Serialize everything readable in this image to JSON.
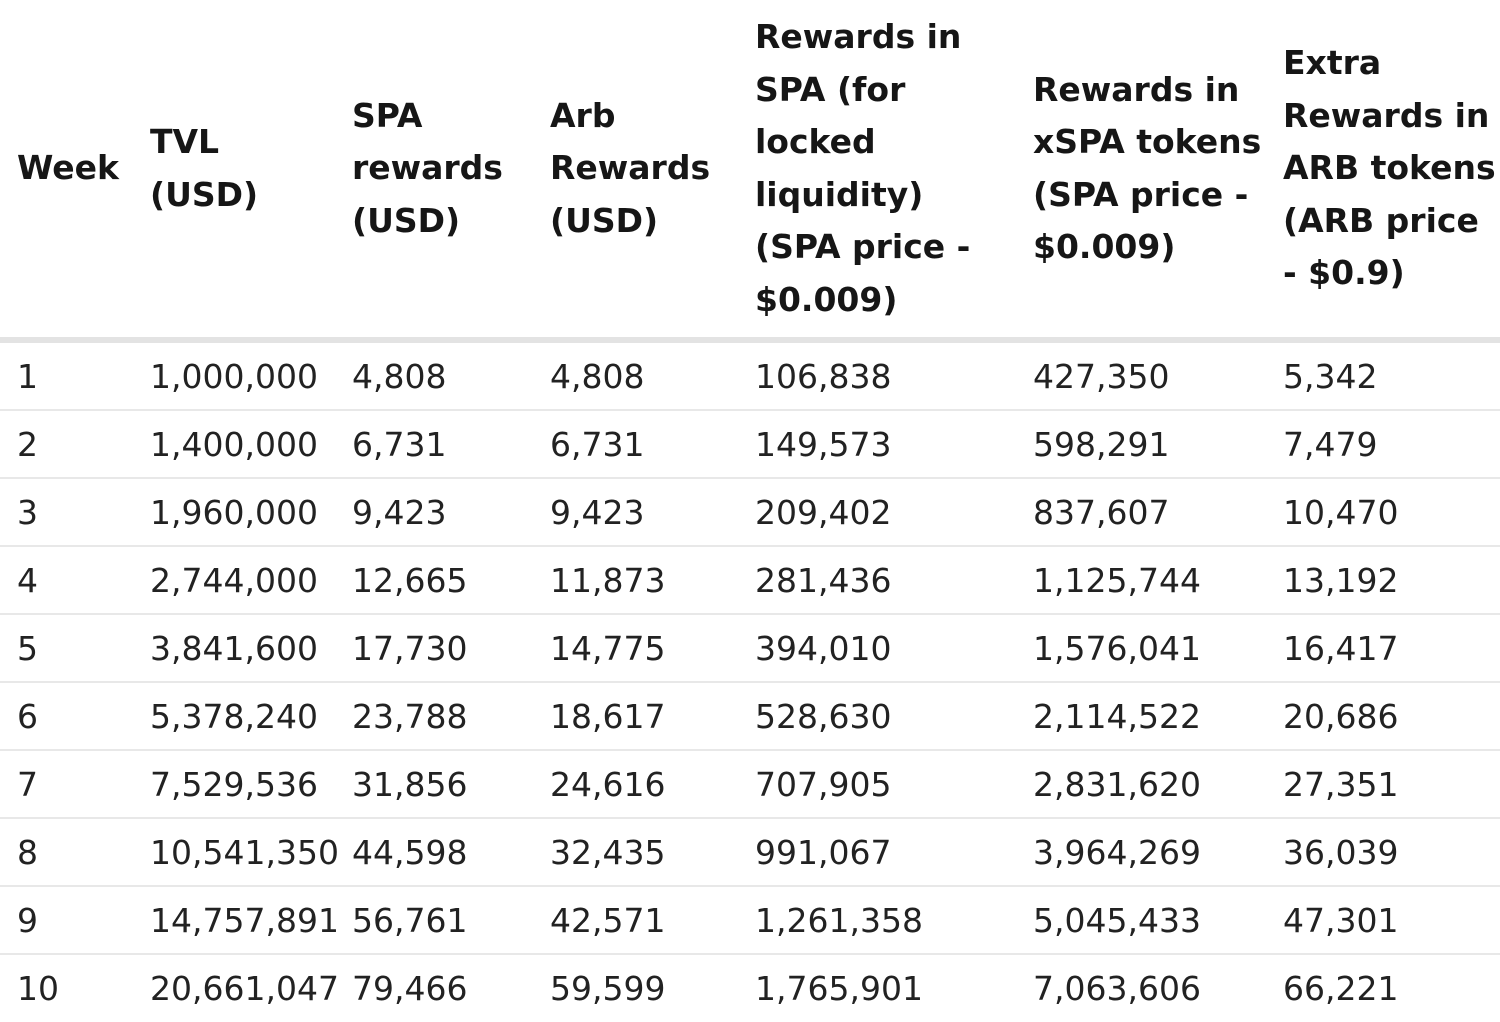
{
  "headers": [
    "Week",
    "TVL (USD)",
    "SPA rewards (USD)",
    "Arb Rewards (USD)",
    "Rewards in SPA (for locked liquidity) (SPA price - $0.009)",
    "Rewards in xSPA tokens (SPA price - $0.009)",
    "Extra Rewards in ARB tokens (ARB price - $0.9)"
  ],
  "rows": [
    [
      "1",
      "1,000,000",
      "4,808",
      "4,808",
      "106,838",
      "427,350",
      "5,342"
    ],
    [
      "2",
      "1,400,000",
      "6,731",
      "6,731",
      "149,573",
      "598,291",
      "7,479"
    ],
    [
      "3",
      "1,960,000",
      "9,423",
      "9,423",
      "209,402",
      "837,607",
      "10,470"
    ],
    [
      "4",
      "2,744,000",
      "12,665",
      "11,873",
      "281,436",
      "1,125,744",
      "13,192"
    ],
    [
      "5",
      "3,841,600",
      "17,730",
      "14,775",
      "394,010",
      "1,576,041",
      "16,417"
    ],
    [
      "6",
      "5,378,240",
      "23,788",
      "18,617",
      "528,630",
      "2,114,522",
      "20,686"
    ],
    [
      "7",
      "7,529,536",
      "31,856",
      "24,616",
      "707,905",
      "2,831,620",
      "27,351"
    ],
    [
      "8",
      "10,541,350",
      "44,598",
      "32,435",
      "991,067",
      "3,964,269",
      "36,039"
    ],
    [
      "9",
      "14,757,891",
      "56,761",
      "42,571",
      "1,261,358",
      "5,045,433",
      "47,301"
    ],
    [
      "10",
      "20,661,047",
      "79,466",
      "59,599",
      "1,765,901",
      "7,063,606",
      "66,221"
    ]
  ]
}
